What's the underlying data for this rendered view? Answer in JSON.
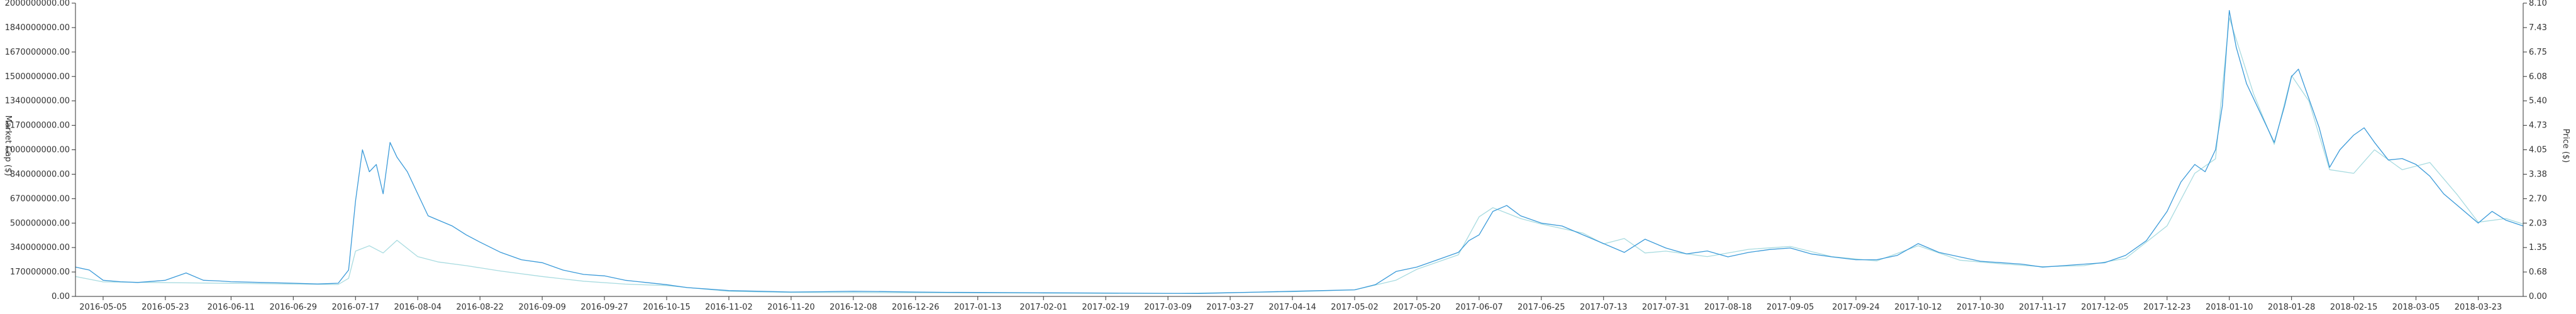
{
  "chart_data": {
    "type": "line",
    "title": "",
    "xlabel": "",
    "ylabel_left": "Market Cap ($)",
    "ylabel_right": "Price ($)",
    "grid": false,
    "ylim_left": [
      0,
      2000000000
    ],
    "ylim_right": [
      0,
      8.1
    ],
    "left_ticks": [
      "0.00",
      "170000000.00",
      "340000000.00",
      "500000000.00",
      "670000000.00",
      "840000000.00",
      "1000000000.00",
      "1170000000.00",
      "1340000000.00",
      "1500000000.00",
      "1670000000.00",
      "1840000000.00",
      "2000000000.00"
    ],
    "right_ticks": [
      "0.00",
      "0.68",
      "1.35",
      "2.03",
      "2.70",
      "3.38",
      "4.05",
      "4.73",
      "5.40",
      "6.08",
      "6.75",
      "7.43",
      "8.10"
    ],
    "x_ticks": [
      "2016-05-05",
      "2016-05-23",
      "2016-06-11",
      "2016-06-29",
      "2016-07-17",
      "2016-08-04",
      "2016-08-22",
      "2016-09-09",
      "2016-09-27",
      "2016-10-15",
      "2016-11-02",
      "2016-11-20",
      "2016-12-08",
      "2016-12-26",
      "2017-01-13",
      "2017-02-01",
      "2017-02-19",
      "2017-03-09",
      "2017-03-27",
      "2017-04-14",
      "2017-05-02",
      "2017-05-20",
      "2017-06-07",
      "2017-06-25",
      "2017-07-13",
      "2017-07-31",
      "2017-08-18",
      "2017-09-05",
      "2017-09-24",
      "2017-10-12",
      "2017-10-30",
      "2017-11-17",
      "2017-12-05",
      "2017-12-23",
      "2018-01-10",
      "2018-01-28",
      "2018-02-15",
      "2018-03-05",
      "2018-03-23"
    ],
    "x_range": [
      "2016-04-27",
      "2018-04-05"
    ],
    "series": [
      {
        "color": "#3a9ad9",
        "axis": "left",
        "x": [
          "2016-04-27",
          "2016-05-01",
          "2016-05-05",
          "2016-05-10",
          "2016-05-15",
          "2016-05-23",
          "2016-05-29",
          "2016-06-03",
          "2016-06-08",
          "2016-06-11",
          "2016-06-20",
          "2016-06-29",
          "2016-07-06",
          "2016-07-12",
          "2016-07-15",
          "2016-07-17",
          "2016-07-19",
          "2016-07-21",
          "2016-07-23",
          "2016-07-25",
          "2016-07-27",
          "2016-07-29",
          "2016-08-01",
          "2016-08-04",
          "2016-08-07",
          "2016-08-10",
          "2016-08-14",
          "2016-08-18",
          "2016-08-22",
          "2016-08-28",
          "2016-09-03",
          "2016-09-09",
          "2016-09-15",
          "2016-09-21",
          "2016-09-27",
          "2016-10-03",
          "2016-10-09",
          "2016-10-15",
          "2016-10-21",
          "2016-10-27",
          "2016-11-02",
          "2016-11-11",
          "2016-11-20",
          "2016-11-29",
          "2016-12-08",
          "2016-12-17",
          "2016-12-26",
          "2017-01-04",
          "2017-01-13",
          "2017-01-22",
          "2017-02-01",
          "2017-02-10",
          "2017-02-19",
          "2017-02-28",
          "2017-03-09",
          "2017-03-18",
          "2017-03-27",
          "2017-04-05",
          "2017-04-14",
          "2017-04-23",
          "2017-05-02",
          "2017-05-08",
          "2017-05-14",
          "2017-05-20",
          "2017-05-26",
          "2017-06-01",
          "2017-06-04",
          "2017-06-07",
          "2017-06-11",
          "2017-06-15",
          "2017-06-19",
          "2017-06-25",
          "2017-07-01",
          "2017-07-07",
          "2017-07-13",
          "2017-07-19",
          "2017-07-25",
          "2017-07-31",
          "2017-08-06",
          "2017-08-12",
          "2017-08-18",
          "2017-08-24",
          "2017-08-30",
          "2017-09-05",
          "2017-09-11",
          "2017-09-17",
          "2017-09-24",
          "2017-09-30",
          "2017-10-06",
          "2017-10-12",
          "2017-10-18",
          "2017-10-24",
          "2017-10-30",
          "2017-11-05",
          "2017-11-11",
          "2017-11-17",
          "2017-11-23",
          "2017-11-29",
          "2017-12-05",
          "2017-12-11",
          "2017-12-17",
          "2017-12-23",
          "2017-12-27",
          "2017-12-31",
          "2018-01-03",
          "2018-01-06",
          "2018-01-08",
          "2018-01-10",
          "2018-01-12",
          "2018-01-15",
          "2018-01-17",
          "2018-01-20",
          "2018-01-23",
          "2018-01-26",
          "2018-01-28",
          "2018-01-30",
          "2018-02-02",
          "2018-02-05",
          "2018-02-08",
          "2018-02-11",
          "2018-02-15",
          "2018-02-18",
          "2018-02-21",
          "2018-02-25",
          "2018-03-01",
          "2018-03-05",
          "2018-03-09",
          "2018-03-13",
          "2018-03-17",
          "2018-03-23",
          "2018-03-27",
          "2018-03-31",
          "2018-04-05"
        ],
        "values": [
          200000000,
          180000000,
          110000000,
          100000000,
          95000000,
          110000000,
          160000000,
          110000000,
          105000000,
          100000000,
          95000000,
          90000000,
          85000000,
          90000000,
          180000000,
          650000000,
          1000000000,
          850000000,
          900000000,
          700000000,
          1050000000,
          950000000,
          850000000,
          700000000,
          550000000,
          520000000,
          480000000,
          420000000,
          370000000,
          300000000,
          250000000,
          230000000,
          180000000,
          150000000,
          140000000,
          110000000,
          95000000,
          80000000,
          60000000,
          50000000,
          40000000,
          35000000,
          30000000,
          32000000,
          35000000,
          33000000,
          30000000,
          28000000,
          27000000,
          26000000,
          25000000,
          24000000,
          23000000,
          22000000,
          21000000,
          20000000,
          25000000,
          30000000,
          35000000,
          40000000,
          45000000,
          80000000,
          170000000,
          200000000,
          250000000,
          300000000,
          380000000,
          420000000,
          580000000,
          620000000,
          550000000,
          500000000,
          480000000,
          420000000,
          360000000,
          300000000,
          390000000,
          330000000,
          290000000,
          310000000,
          270000000,
          300000000,
          320000000,
          330000000,
          290000000,
          270000000,
          250000000,
          250000000,
          280000000,
          360000000,
          300000000,
          270000000,
          240000000,
          230000000,
          220000000,
          200000000,
          210000000,
          220000000,
          230000000,
          280000000,
          380000000,
          580000000,
          780000000,
          900000000,
          850000000,
          1000000000,
          1300000000,
          1950000000,
          1700000000,
          1450000000,
          1350000000,
          1200000000,
          1050000000,
          1300000000,
          1500000000,
          1550000000,
          1350000000,
          1150000000,
          880000000,
          1000000000,
          1100000000,
          1150000000,
          1050000000,
          930000000,
          940000000,
          900000000,
          820000000,
          700000000,
          620000000,
          500000000,
          580000000,
          520000000,
          480000000
        ]
      },
      {
        "color": "#a8dbe0",
        "axis": "right",
        "x": [
          "2016-04-27",
          "2016-05-05",
          "2016-06-11",
          "2016-07-12",
          "2016-07-15",
          "2016-07-17",
          "2016-07-21",
          "2016-07-25",
          "2016-07-29",
          "2016-08-04",
          "2016-08-10",
          "2016-08-18",
          "2016-08-28",
          "2016-09-09",
          "2016-09-21",
          "2016-10-03",
          "2016-10-15",
          "2016-11-02",
          "2016-11-20",
          "2016-12-26",
          "2017-02-01",
          "2017-03-09",
          "2017-04-14",
          "2017-05-02",
          "2017-05-14",
          "2017-05-20",
          "2017-05-26",
          "2017-06-01",
          "2017-06-07",
          "2017-06-11",
          "2017-06-19",
          "2017-06-25",
          "2017-07-07",
          "2017-07-13",
          "2017-07-19",
          "2017-07-25",
          "2017-07-31",
          "2017-08-12",
          "2017-08-24",
          "2017-09-05",
          "2017-09-17",
          "2017-09-30",
          "2017-10-12",
          "2017-10-24",
          "2017-11-05",
          "2017-11-17",
          "2017-11-29",
          "2017-12-11",
          "2017-12-23",
          "2017-12-31",
          "2018-01-06",
          "2018-01-10",
          "2018-01-12",
          "2018-01-17",
          "2018-01-23",
          "2018-01-28",
          "2018-02-02",
          "2018-02-08",
          "2018-02-15",
          "2018-02-21",
          "2018-03-01",
          "2018-03-09",
          "2018-03-17",
          "2018-03-23",
          "2018-03-31",
          "2018-04-05"
        ],
        "values": [
          0.55,
          0.4,
          0.36,
          0.33,
          0.5,
          1.25,
          1.4,
          1.2,
          1.55,
          1.1,
          0.95,
          0.85,
          0.7,
          0.55,
          0.42,
          0.34,
          0.3,
          0.14,
          0.11,
          0.1,
          0.09,
          0.08,
          0.13,
          0.18,
          0.45,
          0.75,
          0.95,
          1.15,
          2.2,
          2.45,
          2.15,
          2.0,
          1.75,
          1.45,
          1.6,
          1.2,
          1.25,
          1.1,
          1.3,
          1.38,
          1.1,
          0.98,
          1.4,
          1.0,
          0.9,
          0.82,
          0.85,
          1.05,
          1.95,
          3.4,
          3.8,
          7.7,
          7.1,
          5.6,
          4.2,
          6.1,
          5.4,
          3.5,
          3.4,
          4.05,
          3.5,
          3.7,
          2.8,
          2.05,
          2.15,
          2.0
        ]
      }
    ]
  }
}
